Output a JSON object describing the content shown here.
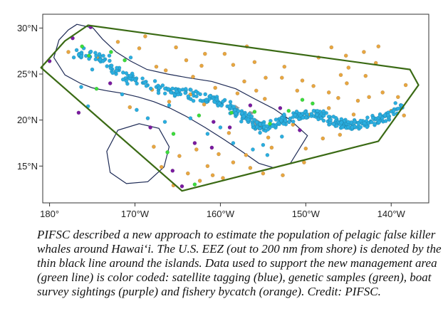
{
  "caption": "PIFSC described a new approach to estimate the population of pelagic false killer whales around Hawai‘i. The U.S. EEZ (out to 200 nm from shore) is denoted by the thin black line around the islands. Data used to support the new management area (green line) is color coded: satellite tagging (blue), genetic samples (green), boat survey sightings (purple) and fishery bycatch (orange). Credit: PIFSC.",
  "chart_data": {
    "type": "scatter",
    "title": "",
    "xlabel": "",
    "ylabel": "",
    "xlim": [
      -180.8,
      -135.6
    ],
    "ylim": [
      11.0,
      31.5
    ],
    "x_ticks": [
      {
        "value": -180,
        "label": "180°"
      },
      {
        "value": -170,
        "label": "170°W"
      },
      {
        "value": -160,
        "label": "160°W"
      },
      {
        "value": -150,
        "label": "150°W"
      },
      {
        "value": -140,
        "label": "140°W"
      }
    ],
    "y_ticks": [
      {
        "value": 15,
        "label": "15°N"
      },
      {
        "value": 20,
        "label": "20°N"
      },
      {
        "value": 25,
        "label": "25°N"
      },
      {
        "value": 30,
        "label": "30°N"
      }
    ],
    "colors": {
      "satellite_tagging": "#2aaee0",
      "genetic_samples": "#3cdc3c",
      "boat_survey_sightings": "#7a1aa0",
      "fishery_bycatch": "#e8a640",
      "management_area": "#3a6a14",
      "eez": "#1d2a55",
      "islands": "#9a9a9a"
    },
    "management_area": {
      "lon": [
        -175.5,
        -137.8,
        -136.8,
        -141.5,
        -164.5,
        -181.0,
        -178.2,
        -175.5
      ],
      "lat": [
        30.3,
        25.5,
        23.8,
        17.7,
        12.3,
        25.7,
        28.6,
        30.3
      ]
    },
    "eez": [
      {
        "name": "main",
        "lon": [
          -176.8,
          -174.9,
          -173.8,
          -172.2,
          -170.5,
          -168.6,
          -166.2,
          -163.8,
          -161.0,
          -158.2,
          -156.0,
          -153.7,
          -151.8,
          -149.8,
          -151.8,
          -153.7,
          -155.5,
          -157.5,
          -159.6,
          -161.8,
          -164.0,
          -165.9,
          -167.8,
          -169.6,
          -171.4,
          -173.4,
          -175.0,
          -176.4,
          -178.2,
          -179.5,
          -178.9,
          -177.8,
          -176.8
        ],
        "lat": [
          30.4,
          30.0,
          28.8,
          27.4,
          26.4,
          25.5,
          25.0,
          24.6,
          24.2,
          23.4,
          22.3,
          21.2,
          20.0,
          18.3,
          15.3,
          14.8,
          15.3,
          16.6,
          17.9,
          19.2,
          20.4,
          21.3,
          22.0,
          22.5,
          22.9,
          23.2,
          23.5,
          24.0,
          24.9,
          26.8,
          28.7,
          29.8,
          30.4
        ]
      },
      {
        "name": "johnston",
        "lon": [
          -169.5,
          -167.2,
          -166.0,
          -166.6,
          -168.5,
          -171.0,
          -172.9,
          -173.3,
          -172.0,
          -169.5
        ],
        "lat": [
          19.6,
          19.1,
          17.1,
          14.9,
          13.3,
          13.1,
          14.3,
          16.6,
          18.9,
          19.6
        ]
      }
    ],
    "islands": [
      {
        "lon": [
          -155.9,
          -155.1,
          -154.9,
          -155.6,
          -156.0
        ],
        "lat": [
          20.2,
          19.7,
          19.1,
          18.9,
          19.6
        ]
      },
      {
        "lon": [
          -156.6,
          -156.0,
          -156.3,
          -156.7
        ],
        "lat": [
          21.0,
          20.8,
          20.6,
          20.8
        ]
      },
      {
        "lon": [
          -158.3,
          -157.7,
          -158.1
        ],
        "lat": [
          21.7,
          21.3,
          21.2
        ]
      },
      {
        "lon": [
          -159.8,
          -159.3,
          -159.6
        ],
        "lat": [
          22.2,
          22.0,
          21.9
        ]
      }
    ],
    "series": [
      {
        "name": "satellite tagging",
        "track_lon": [
          -176.5,
          -174.8,
          -173.2,
          -171.8,
          -170.2,
          -168.5,
          -166.8,
          -165.5,
          -164.0,
          -162.5,
          -161.0,
          -159.5,
          -158.5,
          -157.5,
          -157.0,
          -156.3,
          -155.5,
          -154.8,
          -154.0,
          -153.0,
          -152.0,
          -151.0,
          -150.0,
          -149.0,
          -148.0,
          -147.0,
          -146.0,
          -145.0,
          -144.0,
          -143.0,
          -142.0,
          -141.0,
          -140.0,
          -139.0
        ],
        "track_lat": [
          27.2,
          27.0,
          26.3,
          25.4,
          24.3,
          24.0,
          23.4,
          23.0,
          23.0,
          22.5,
          22.2,
          21.8,
          21.2,
          20.7,
          20.3,
          19.8,
          19.3,
          19.0,
          19.4,
          19.7,
          20.2,
          20.5,
          20.6,
          20.7,
          20.5,
          20.0,
          19.6,
          19.6,
          19.4,
          19.8,
          19.9,
          20.2,
          20.6,
          21.6
        ],
        "track_spread": 0.9,
        "track_points": 460,
        "scatter_points": [
          [
            -176.3,
            23.6
          ],
          [
            -175.5,
            21.5
          ],
          [
            -175.0,
            25.5
          ],
          [
            -174.6,
            26.6
          ],
          [
            -171.5,
            22.8
          ],
          [
            -169.8,
            21.1
          ],
          [
            -168.5,
            20.2
          ],
          [
            -166.5,
            19.8
          ],
          [
            -163.5,
            20.2
          ],
          [
            -161.5,
            18.5
          ],
          [
            -158.5,
            17.5
          ],
          [
            -156.2,
            16.8
          ],
          [
            -155.0,
            17.3
          ],
          [
            -154.5,
            16.2
          ],
          [
            -152.8,
            18.2
          ],
          [
            -160.0,
            19.2
          ],
          [
            -166.0,
            21.6
          ],
          [
            -173.0,
            27.0
          ],
          [
            -176.0,
            27.8
          ],
          [
            -170.5,
            26.8
          ]
        ]
      },
      {
        "name": "genetic samples",
        "points": [
          [
            -176.2,
            28.0
          ],
          [
            -175.4,
            27.0
          ],
          [
            -172.8,
            27.4
          ],
          [
            -171.2,
            26.5
          ],
          [
            -174.5,
            23.4
          ],
          [
            -165.5,
            18.5
          ],
          [
            -166.2,
            16.5
          ],
          [
            -163.0,
            13.0
          ],
          [
            -162.5,
            20.5
          ],
          [
            -158.7,
            20.8
          ],
          [
            -156.0,
            20.9
          ],
          [
            -154.2,
            19.6
          ],
          [
            -152.0,
            21.0
          ],
          [
            -150.4,
            22.2
          ],
          [
            -149.2,
            21.8
          ]
        ]
      },
      {
        "name": "boat survey sightings",
        "points": [
          [
            -175.2,
            30.1
          ],
          [
            -177.3,
            28.9
          ],
          [
            -180.0,
            26.4
          ],
          [
            -172.9,
            24.0
          ],
          [
            -176.6,
            20.8
          ],
          [
            -168.2,
            19.2
          ],
          [
            -163.0,
            17.5
          ],
          [
            -164.5,
            12.8
          ],
          [
            -165.6,
            14.5
          ],
          [
            -161.0,
            17.0
          ],
          [
            -160.8,
            19.8
          ],
          [
            -158.9,
            19.2
          ],
          [
            -156.5,
            21.6
          ],
          [
            -153.0,
            21.3
          ],
          [
            -150.7,
            18.9
          ]
        ]
      },
      {
        "name": "fishery bycatch",
        "points": [
          [
            -168.8,
            29.1
          ],
          [
            -169.5,
            27.8
          ],
          [
            -167.5,
            25.8
          ],
          [
            -166.4,
            25.4
          ],
          [
            -164.0,
            26.5
          ],
          [
            -161.8,
            27.2
          ],
          [
            -158.5,
            26.0
          ],
          [
            -156.0,
            26.3
          ],
          [
            -154.7,
            24.6
          ],
          [
            -152.8,
            24.6
          ],
          [
            -151.0,
            23.2
          ],
          [
            -149.1,
            23.7
          ],
          [
            -147.3,
            23.0
          ],
          [
            -145.2,
            24.0
          ],
          [
            -143.9,
            22.1
          ],
          [
            -142.6,
            22.5
          ],
          [
            -141.0,
            23.0
          ],
          [
            -143.2,
            27.4
          ],
          [
            -145.3,
            27.0
          ],
          [
            -141.5,
            28.0
          ],
          [
            -143.0,
            24.8
          ],
          [
            -147.0,
            27.9
          ],
          [
            -145.0,
            25.7
          ],
          [
            -139.2,
            22.5
          ],
          [
            -140.0,
            21.0
          ],
          [
            -138.5,
            20.5
          ],
          [
            -146.0,
            18.4
          ],
          [
            -148.0,
            18.0
          ],
          [
            -150.0,
            16.9
          ],
          [
            -151.5,
            19.5
          ],
          [
            -154.0,
            17.0
          ],
          [
            -156.5,
            14.8
          ],
          [
            -155.0,
            14.2
          ],
          [
            -158.5,
            15.4
          ],
          [
            -157.0,
            16.2
          ],
          [
            -160.2,
            16.3
          ],
          [
            -161.5,
            15.0
          ],
          [
            -162.8,
            16.8
          ],
          [
            -163.8,
            14.2
          ],
          [
            -164.8,
            16.1
          ],
          [
            -165.5,
            12.9
          ],
          [
            -162.4,
            13.4
          ],
          [
            -160.9,
            14.0
          ],
          [
            -159.0,
            18.6
          ],
          [
            -161.9,
            21.7
          ],
          [
            -163.5,
            22.8
          ],
          [
            -166.0,
            22.0
          ],
          [
            -170.6,
            21.4
          ],
          [
            -174.3,
            26.8
          ],
          [
            -177.8,
            27.4
          ],
          [
            -172.0,
            28.5
          ],
          [
            -159.5,
            27.2
          ],
          [
            -157.2,
            24.2
          ],
          [
            -154.8,
            22.3
          ],
          [
            -152.5,
            25.8
          ],
          [
            -150.4,
            24.3
          ],
          [
            -148.5,
            26.8
          ],
          [
            -146.2,
            22.4
          ],
          [
            -147.3,
            21.3
          ],
          [
            -160.6,
            23.5
          ],
          [
            -168.0,
            23.3
          ],
          [
            -163.2,
            24.7
          ],
          [
            -150.2,
            15.4
          ],
          [
            -152.7,
            14.0
          ],
          [
            -144.4,
            20.6
          ],
          [
            -141.8,
            26.2
          ],
          [
            -138.3,
            23.8
          ],
          [
            -156.9,
            28.0
          ],
          [
            -165.2,
            27.9
          ],
          [
            -155.8,
            23.2
          ],
          [
            -167.8,
            17.1
          ],
          [
            -159.7,
            13.7
          ],
          [
            -166.9,
            14.9
          ],
          [
            -154.4,
            18.1
          ],
          [
            -145.9,
            24.9
          ],
          [
            -149.5,
            20.6
          ],
          [
            -162.2,
            25.9
          ],
          [
            -158.0,
            22.9
          ]
        ]
      }
    ]
  }
}
